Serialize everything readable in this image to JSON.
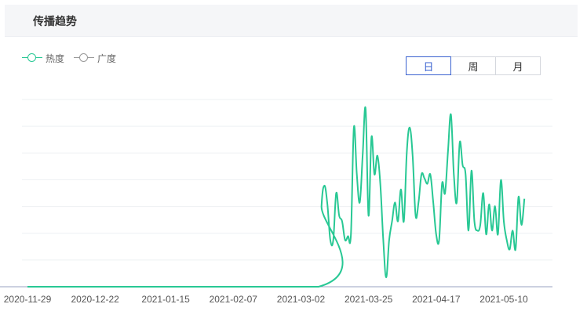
{
  "header": {
    "title": "传播趋势"
  },
  "legend": [
    {
      "label": "热度",
      "color": "#28c894"
    },
    {
      "label": "广度",
      "color": "#999999"
    }
  ],
  "period_tabs": {
    "items": [
      "日",
      "周",
      "月"
    ],
    "selected": "日"
  },
  "chart_data": {
    "type": "line",
    "x_tick_labels": [
      "2020-11-29",
      "2020-12-22",
      "2021-01-15",
      "2021-02-07",
      "2021-03-02",
      "2021-03-25",
      "2021-04-17",
      "2021-05-10"
    ],
    "x_range": [
      "2020-11-29",
      "2021-05-27"
    ],
    "grid": true,
    "legend_position": "top-left",
    "series": [
      {
        "name": "热度",
        "color": "#28c894",
        "values": [
          [
            "2020-11-29",
            0
          ],
          [
            "2021-03-08",
            0
          ],
          [
            "2021-03-09",
            0.43
          ],
          [
            "2021-03-10",
            0.54
          ],
          [
            "2021-03-11",
            0.44
          ],
          [
            "2021-03-12",
            0.25
          ],
          [
            "2021-03-13",
            0.25
          ],
          [
            "2021-03-14",
            0.5
          ],
          [
            "2021-03-15",
            0.38
          ],
          [
            "2021-03-16",
            0.35
          ],
          [
            "2021-03-17",
            0.25
          ],
          [
            "2021-03-18",
            0.27
          ],
          [
            "2021-03-19",
            0.28
          ],
          [
            "2021-03-20",
            0.85
          ],
          [
            "2021-03-21",
            0.6
          ],
          [
            "2021-03-22",
            0.45
          ],
          [
            "2021-03-23",
            0.7
          ],
          [
            "2021-03-24",
            0.95
          ],
          [
            "2021-03-25",
            0.38
          ],
          [
            "2021-03-26",
            0.8
          ],
          [
            "2021-03-27",
            0.6
          ],
          [
            "2021-03-28",
            0.7
          ],
          [
            "2021-03-29",
            0.55
          ],
          [
            "2021-03-30",
            0.25
          ],
          [
            "2021-03-31",
            0.05
          ],
          [
            "2021-04-01",
            0.25
          ],
          [
            "2021-04-02",
            0.35
          ],
          [
            "2021-04-03",
            0.45
          ],
          [
            "2021-04-04",
            0.35
          ],
          [
            "2021-04-05",
            0.52
          ],
          [
            "2021-04-06",
            0.35
          ],
          [
            "2021-04-07",
            0.72
          ],
          [
            "2021-04-08",
            0.85
          ],
          [
            "2021-04-09",
            0.7
          ],
          [
            "2021-04-10",
            0.38
          ],
          [
            "2021-04-11",
            0.45
          ],
          [
            "2021-04-12",
            0.6
          ],
          [
            "2021-04-13",
            0.58
          ],
          [
            "2021-04-14",
            0.55
          ],
          [
            "2021-04-15",
            0.6
          ],
          [
            "2021-04-16",
            0.45
          ],
          [
            "2021-04-17",
            0.28
          ],
          [
            "2021-04-18",
            0.25
          ],
          [
            "2021-04-19",
            0.55
          ],
          [
            "2021-04-20",
            0.5
          ],
          [
            "2021-04-21",
            0.72
          ],
          [
            "2021-04-22",
            0.92
          ],
          [
            "2021-04-23",
            0.6
          ],
          [
            "2021-04-24",
            0.45
          ],
          [
            "2021-04-25",
            0.77
          ],
          [
            "2021-04-26",
            0.65
          ],
          [
            "2021-04-27",
            0.6
          ],
          [
            "2021-04-28",
            0.3
          ],
          [
            "2021-04-29",
            0.62
          ],
          [
            "2021-04-30",
            0.35
          ],
          [
            "2021-05-01",
            0.3
          ],
          [
            "2021-05-02",
            0.33
          ],
          [
            "2021-05-03",
            0.5
          ],
          [
            "2021-05-04",
            0.28
          ],
          [
            "2021-05-05",
            0.44
          ],
          [
            "2021-05-06",
            0.3
          ],
          [
            "2021-05-07",
            0.43
          ],
          [
            "2021-05-08",
            0.28
          ],
          [
            "2021-05-09",
            0.57
          ],
          [
            "2021-05-10",
            0.35
          ],
          [
            "2021-05-11",
            0.25
          ],
          [
            "2021-05-12",
            0.2
          ],
          [
            "2021-05-13",
            0.3
          ],
          [
            "2021-05-14",
            0.2
          ],
          [
            "2021-05-15",
            0.48
          ],
          [
            "2021-05-16",
            0.33
          ],
          [
            "2021-05-17",
            0.47
          ]
        ]
      }
    ]
  }
}
